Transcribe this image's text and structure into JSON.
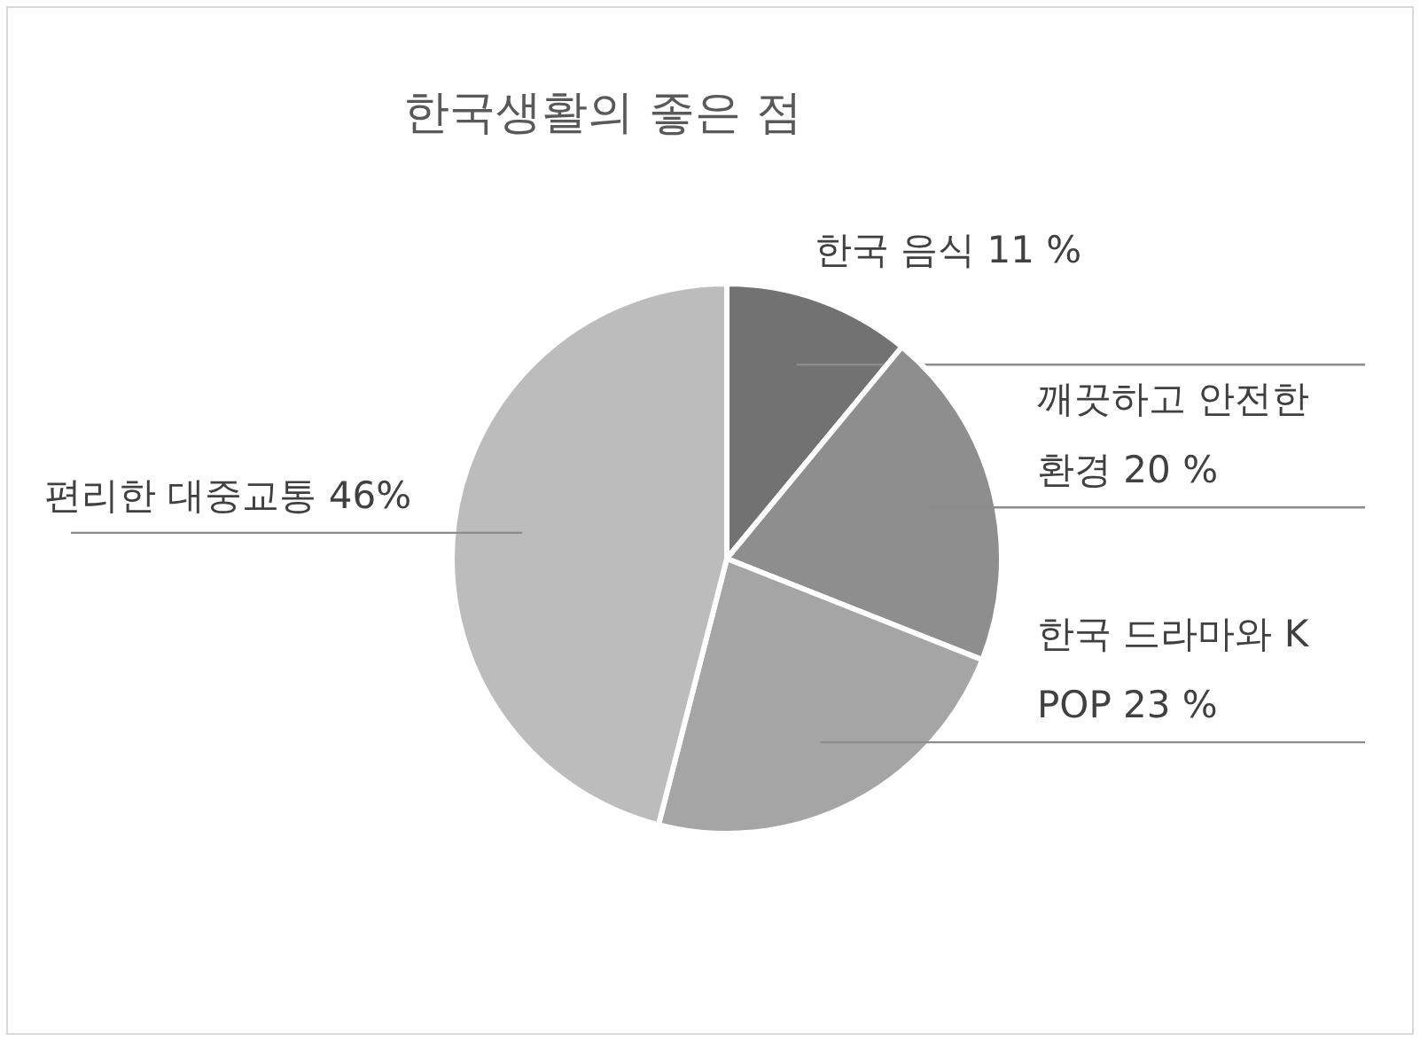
{
  "chart_data": {
    "type": "pie",
    "title": "한국생활의 좋은 점",
    "categories": [
      "한국 음식",
      "깨끗하고 안전한 환경",
      "한국 드라마와 K POP",
      "편리한 대중교통"
    ],
    "values": [
      11,
      20,
      23,
      46
    ],
    "value_labels": [
      "11 %",
      "20 %",
      "23 %",
      "46%"
    ],
    "colors": [
      "#727272",
      "#8e8e8e",
      "#a5a5a5",
      "#bcbcbc"
    ]
  }
}
